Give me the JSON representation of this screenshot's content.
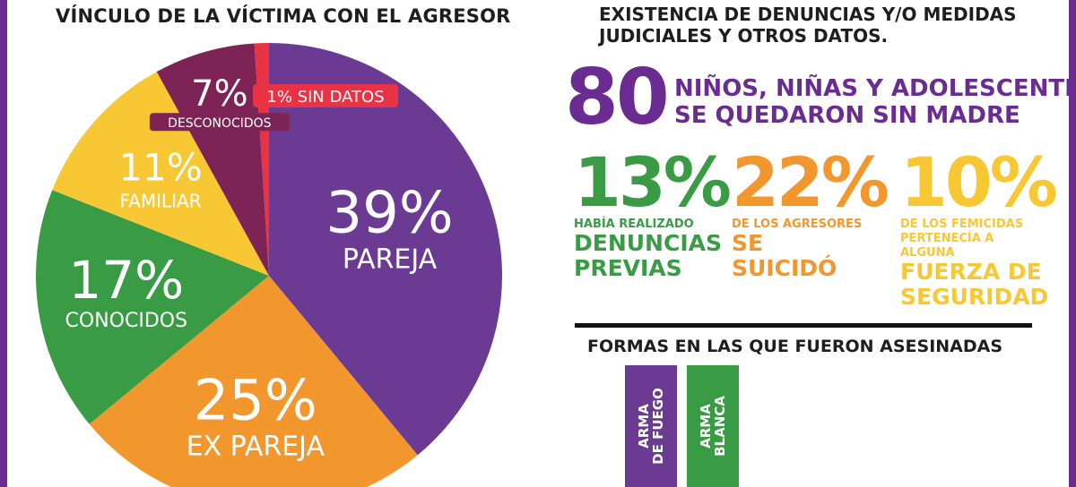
{
  "pie_section": {
    "title": "VÍNCULO DE LA VÍCTIMA CON EL AGRESOR"
  },
  "chart_data": {
    "type": "pie",
    "slices": [
      {
        "pct": "39%",
        "label": "PAREJA",
        "value": 39,
        "color": "#6b3a93"
      },
      {
        "pct": "25%",
        "label": "EX PAREJA",
        "value": 25,
        "color": "#f2962e"
      },
      {
        "pct": "17%",
        "label": "CONOCIDOS",
        "value": 17,
        "color": "#3a9b45"
      },
      {
        "pct": "11%",
        "label": "FAMILIAR",
        "value": 11,
        "color": "#f7c833"
      },
      {
        "pct": "7%",
        "label": "DESCONOCIDOS",
        "value": 7,
        "color": "#7d2355"
      },
      {
        "pct": "",
        "label": "1% SIN DATOS",
        "value": 1,
        "color": "#e83344"
      }
    ]
  },
  "existence": {
    "title_lines": [
      "EXISTENCIA DE DENUNCIAS Y/O MEDIDAS",
      "JUDICIALES Y OTROS DATOS."
    ],
    "orphans_number": "80",
    "orphans_lines": [
      "NIÑOS, NIÑAS Y ADOLESCENTES",
      "SE QUEDARON SIN MADRE"
    ],
    "stats": [
      {
        "pct": "13%",
        "small": [
          "HABÍA REALIZADO"
        ],
        "bold": [
          "DENUNCIAS",
          "PREVIAS"
        ],
        "color": "#3a9b45"
      },
      {
        "pct": "22%",
        "small": [
          "DE LOS AGRESORES"
        ],
        "bold": [
          "SE",
          "SUICIDÓ"
        ],
        "color": "#f2962e"
      },
      {
        "pct": "10%",
        "small": [
          "DE LOS FEMICIDAS",
          "PERTENECÍA A",
          "ALGUNA"
        ],
        "bold": [
          "FUERZA DE",
          "SEGURIDAD"
        ],
        "color": "#f7c833"
      }
    ]
  },
  "weapons": {
    "title": "FORMAS EN LAS QUE FUERON ASESINADAS",
    "items": [
      {
        "label_lines": [
          "ARMA",
          "DE FUEGO"
        ],
        "color": "#6b3a93"
      },
      {
        "label_lines": [
          "ARMA",
          "BLANCA"
        ],
        "color": "#3a9b45"
      }
    ]
  }
}
